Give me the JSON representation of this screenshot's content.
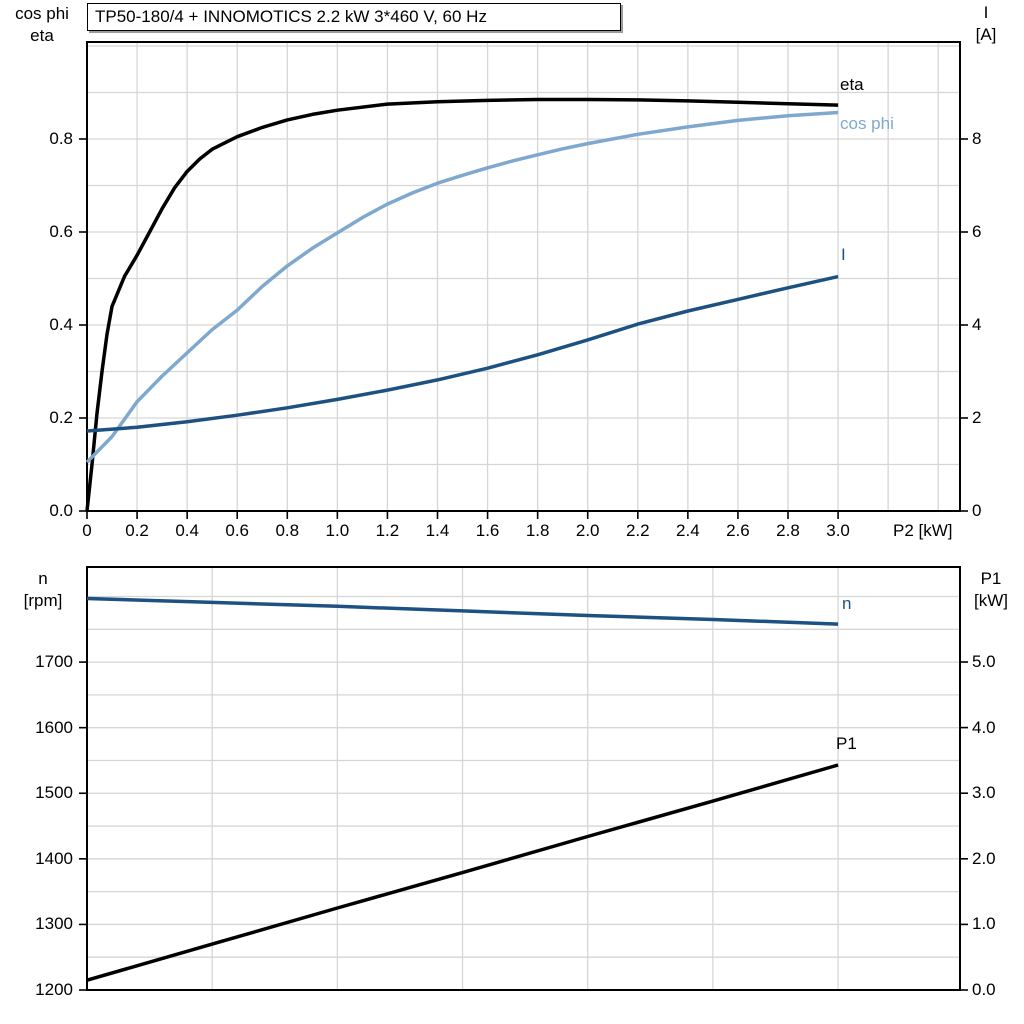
{
  "title": "TP50-180/4 + INNOMOTICS   2.2 kW   3*460 V, 60 Hz",
  "colors": {
    "black": "#000000",
    "dark_blue": "#1d5181",
    "light_blue": "#7fa8cf",
    "grid": "#d6d6d6",
    "frame": "#000000"
  },
  "chart_data": [
    {
      "type": "line",
      "name": "motor-efficiency-chart",
      "x_axis": {
        "label": "P2 [kW]",
        "min": 0,
        "max": 3.487,
        "grid_step": 0.2,
        "tick_values": [
          0,
          0.2,
          0.4,
          0.6,
          0.8,
          1.0,
          1.2,
          1.4,
          1.6,
          1.8,
          2.0,
          2.2,
          2.4,
          2.6,
          2.8,
          3.0
        ],
        "tick_labels": [
          "0",
          "0.2",
          "0.4",
          "0.6",
          "0.8",
          "1.0",
          "1.2",
          "1.4",
          "1.6",
          "1.8",
          "2.0",
          "2.2",
          "2.4",
          "2.6",
          "2.8",
          "3.0"
        ]
      },
      "left_axis": {
        "title_line1": "cos phi",
        "title_line2": "eta",
        "min": 0,
        "max": 1.0086,
        "grid_step": 0.1,
        "tick_values": [
          0,
          0.2,
          0.4,
          0.6,
          0.8
        ],
        "tick_labels": [
          "0.0",
          "0.2",
          "0.4",
          "0.6",
          "0.8"
        ]
      },
      "right_axis": {
        "title_line1": "I",
        "title_line2": "[A]",
        "min": 0,
        "max": 10.086,
        "tick_values": [
          0,
          2,
          4,
          6,
          8
        ],
        "tick_labels": [
          "0",
          "2",
          "4",
          "6",
          "8"
        ]
      },
      "series": [
        {
          "name": "eta",
          "color": "black",
          "axis": "left",
          "points": [
            [
              0,
              0
            ],
            [
              0.02,
              0.1
            ],
            [
              0.04,
              0.21
            ],
            [
              0.06,
              0.3
            ],
            [
              0.08,
              0.38
            ],
            [
              0.1,
              0.44
            ],
            [
              0.15,
              0.505
            ],
            [
              0.2,
              0.55
            ],
            [
              0.25,
              0.6
            ],
            [
              0.3,
              0.65
            ],
            [
              0.35,
              0.695
            ],
            [
              0.4,
              0.73
            ],
            [
              0.45,
              0.757
            ],
            [
              0.5,
              0.778
            ],
            [
              0.6,
              0.805
            ],
            [
              0.7,
              0.825
            ],
            [
              0.8,
              0.841
            ],
            [
              0.9,
              0.853
            ],
            [
              1.0,
              0.862
            ],
            [
              1.2,
              0.875
            ],
            [
              1.4,
              0.88
            ],
            [
              1.6,
              0.883
            ],
            [
              1.8,
              0.885
            ],
            [
              2.0,
              0.885
            ],
            [
              2.2,
              0.884
            ],
            [
              2.4,
              0.882
            ],
            [
              2.6,
              0.879
            ],
            [
              2.8,
              0.876
            ],
            [
              3.0,
              0.873
            ]
          ]
        },
        {
          "name": "cos phi",
          "color": "light_blue",
          "axis": "left",
          "points": [
            [
              0,
              0.105
            ],
            [
              0.1,
              0.16
            ],
            [
              0.2,
              0.235
            ],
            [
              0.3,
              0.29
            ],
            [
              0.4,
              0.34
            ],
            [
              0.5,
              0.39
            ],
            [
              0.6,
              0.432
            ],
            [
              0.7,
              0.483
            ],
            [
              0.8,
              0.527
            ],
            [
              0.9,
              0.565
            ],
            [
              1.0,
              0.598
            ],
            [
              1.1,
              0.631
            ],
            [
              1.2,
              0.66
            ],
            [
              1.3,
              0.684
            ],
            [
              1.4,
              0.705
            ],
            [
              1.5,
              0.722
            ],
            [
              1.6,
              0.738
            ],
            [
              1.7,
              0.753
            ],
            [
              1.8,
              0.766
            ],
            [
              1.9,
              0.779
            ],
            [
              2.0,
              0.79
            ],
            [
              2.2,
              0.81
            ],
            [
              2.4,
              0.826
            ],
            [
              2.6,
              0.84
            ],
            [
              2.8,
              0.85
            ],
            [
              3.0,
              0.857
            ]
          ]
        },
        {
          "name": "I",
          "color": "dark_blue",
          "axis": "right",
          "points": [
            [
              0,
              1.72
            ],
            [
              0.2,
              1.8
            ],
            [
              0.4,
              1.92
            ],
            [
              0.6,
              2.06
            ],
            [
              0.8,
              2.22
            ],
            [
              1.0,
              2.4
            ],
            [
              1.2,
              2.6
            ],
            [
              1.4,
              2.82
            ],
            [
              1.6,
              3.07
            ],
            [
              1.8,
              3.36
            ],
            [
              2.0,
              3.68
            ],
            [
              2.2,
              4.02
            ],
            [
              2.4,
              4.3
            ],
            [
              2.6,
              4.55
            ],
            [
              2.8,
              4.8
            ],
            [
              3.0,
              5.04
            ]
          ]
        }
      ]
    },
    {
      "type": "line",
      "name": "speed-power-chart",
      "x_axis": {
        "label": "",
        "min": 0,
        "max": 3.487,
        "grid_step": 0.5,
        "tick_values": [],
        "tick_labels": []
      },
      "left_axis": {
        "title_line1": "n",
        "title_line2": "[rpm]",
        "min": 1200,
        "max": 1845,
        "grid_step": 50,
        "tick_values": [
          1700,
          1600,
          1500,
          1400,
          1300,
          1200
        ],
        "tick_labels": [
          "1700",
          "1600",
          "1500",
          "1400",
          "1300",
          "1200"
        ]
      },
      "right_axis": {
        "title_line1": "P1",
        "title_line2": "[kW]",
        "min": 0,
        "max": 6.448,
        "tick_values": [
          5.0,
          4.0,
          3.0,
          2.0,
          1.0,
          0.0
        ],
        "tick_labels": [
          "5.0",
          "4.0",
          "3.0",
          "2.0",
          "1.0",
          "0.0"
        ]
      },
      "series": [
        {
          "name": "n",
          "color": "dark_blue",
          "axis": "left",
          "points": [
            [
              0,
              1797
            ],
            [
              0.5,
              1791
            ],
            [
              1.0,
              1785
            ],
            [
              1.5,
              1778
            ],
            [
              2.0,
              1771
            ],
            [
              2.5,
              1765
            ],
            [
              3.0,
              1758
            ]
          ]
        },
        {
          "name": "P1",
          "color": "black",
          "axis": "right",
          "points": [
            [
              0,
              0.15
            ],
            [
              0.5,
              0.7
            ],
            [
              1.0,
              1.25
            ],
            [
              1.5,
              1.79
            ],
            [
              2.0,
              2.34
            ],
            [
              2.5,
              2.88
            ],
            [
              3.0,
              3.43
            ]
          ]
        }
      ]
    }
  ]
}
